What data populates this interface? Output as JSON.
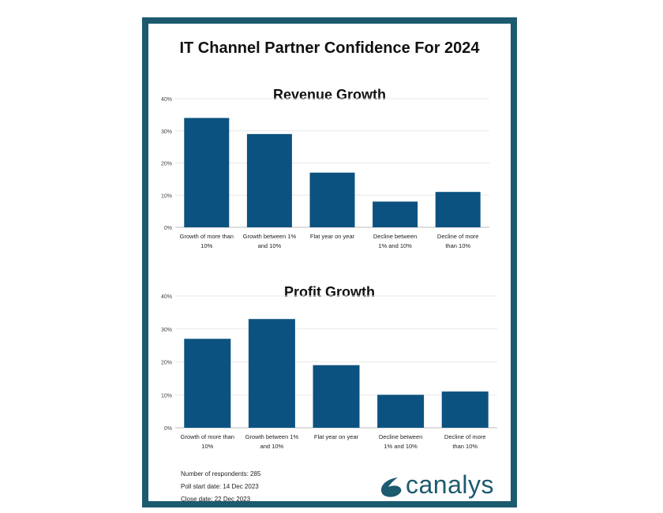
{
  "title": "IT Channel Partner Confidence For 2024",
  "colors": {
    "frame": "#1c5a6e",
    "bar": "#0c5280",
    "grid": "#e8e8e8"
  },
  "chart_data": [
    {
      "type": "bar",
      "title": "Revenue Growth",
      "categories": [
        "Growth of more than 10%",
        "Growth between 1% and 10%",
        "Flat year on year",
        "Decline between 1% and 10%",
        "Decline of more than 10%"
      ],
      "values": [
        34,
        29,
        17,
        8,
        11
      ],
      "ylim": [
        0,
        40
      ],
      "yticks": [
        "0%",
        "10%",
        "20%",
        "30%",
        "40%"
      ],
      "grid": true
    },
    {
      "type": "bar",
      "title": "Profit Growth",
      "categories": [
        "Growth of more than 10%",
        "Growth between 1% and 10%",
        "Flat year on year",
        "Decline between 1% and 10%",
        "Decline of more than 10%"
      ],
      "values": [
        27,
        33,
        19,
        10,
        11
      ],
      "ylim": [
        0,
        40
      ],
      "yticks": [
        "0%",
        "10%",
        "20%",
        "30%",
        "40%"
      ],
      "grid": true
    }
  ],
  "footer": [
    "Number of respondents: 285",
    "Poll start date: 14 Dec 2023",
    "Close date: 22 Dec 2023"
  ],
  "logo": "canalys"
}
